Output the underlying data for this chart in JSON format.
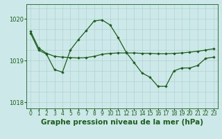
{
  "title": "Graphe pression niveau de la mer (hPa)",
  "bg_color": "#cce8e8",
  "line_color": "#1a5e1a",
  "grid_major_color": "#aacccc",
  "grid_minor_color": "#c0dada",
  "x_labels": [
    "0",
    "1",
    "2",
    "3",
    "4",
    "5",
    "6",
    "7",
    "8",
    "9",
    "10",
    "11",
    "12",
    "13",
    "14",
    "15",
    "16",
    "17",
    "18",
    "19",
    "20",
    "21",
    "22",
    "23"
  ],
  "x_values": [
    0,
    1,
    2,
    3,
    4,
    5,
    6,
    7,
    8,
    9,
    10,
    11,
    12,
    13,
    14,
    15,
    16,
    17,
    18,
    19,
    20,
    21,
    22,
    23
  ],
  "line_volatile": [
    1019.65,
    1019.25,
    1019.15,
    1018.78,
    1018.72,
    1019.25,
    1019.5,
    1019.72,
    1019.95,
    1019.97,
    1019.85,
    1019.55,
    1019.2,
    1018.95,
    1018.7,
    1018.6,
    1018.38,
    1018.38,
    1018.75,
    1018.82,
    1018.82,
    1018.88,
    1019.05,
    1019.08
  ],
  "line_smooth": [
    1019.7,
    1019.3,
    1019.17,
    1019.1,
    1019.08,
    1019.07,
    1019.06,
    1019.07,
    1019.1,
    1019.15,
    1019.17,
    1019.18,
    1019.18,
    1019.18,
    1019.17,
    1019.17,
    1019.16,
    1019.16,
    1019.17,
    1019.18,
    1019.2,
    1019.22,
    1019.25,
    1019.28
  ],
  "ylim_min": 1017.85,
  "ylim_max": 1020.35,
  "yticks": [
    1018,
    1019,
    1020
  ],
  "title_fontsize": 7.5,
  "tick_fontsize": 6.0,
  "figwidth": 3.2,
  "figheight": 2.0,
  "dpi": 100
}
